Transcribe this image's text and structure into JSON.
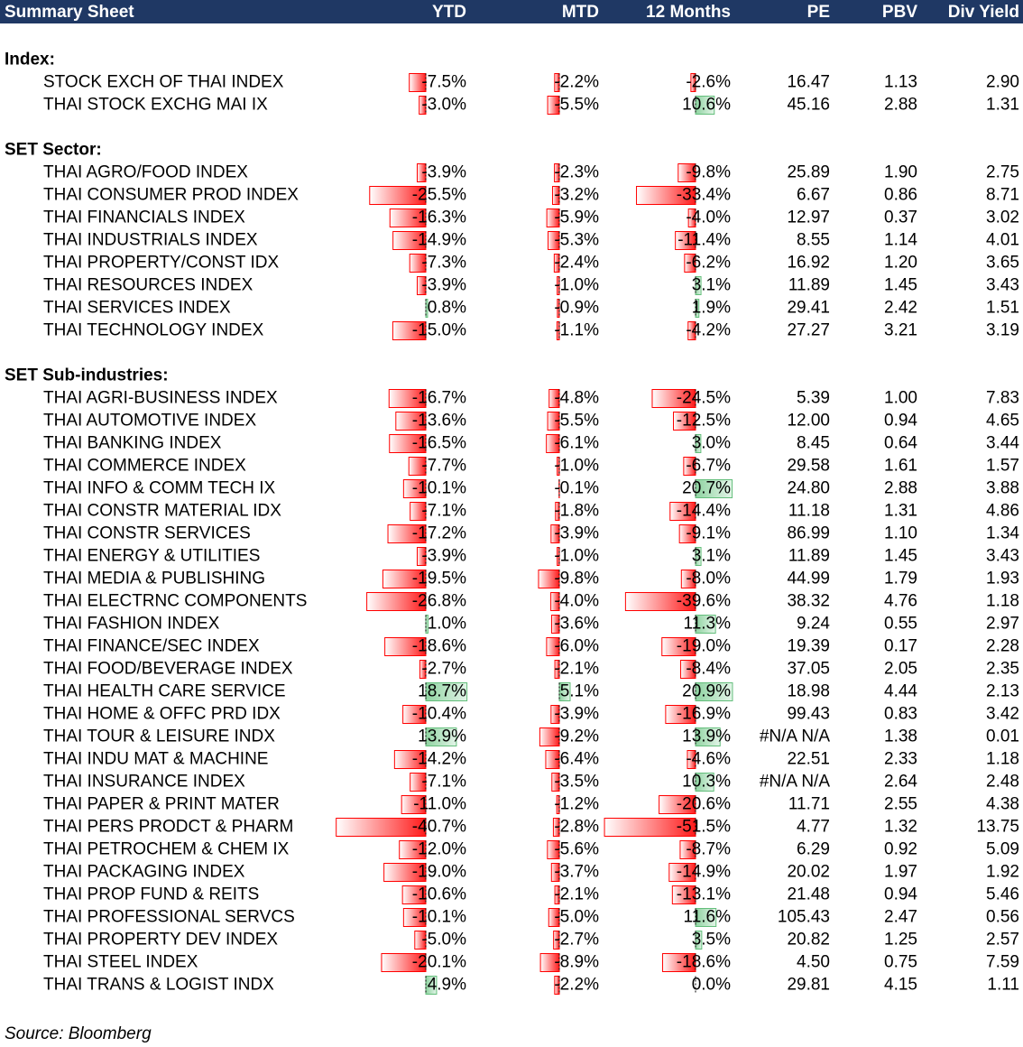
{
  "header": {
    "columns": [
      "Summary Sheet",
      "YTD",
      "MTD",
      "12 Months",
      "PE",
      "PBV",
      "Div Yield"
    ]
  },
  "sections": [
    {
      "title": "Index:",
      "rows": [
        [
          "STOCK EXCH OF THAI INDEX",
          {
            "value": -7.5,
            "label": "-7.5%"
          },
          {
            "value": -2.2,
            "label": "-2.2%"
          },
          {
            "value": -2.6,
            "label": "-2.6%"
          },
          "16.47",
          "1.13",
          "2.90"
        ],
        [
          "THAI STOCK EXCHG MAI IX",
          {
            "value": -3.0,
            "label": "-3.0%"
          },
          {
            "value": -5.5,
            "label": "-5.5%"
          },
          {
            "value": 10.6,
            "label": "10.6%"
          },
          "45.16",
          "2.88",
          "1.31"
        ]
      ]
    },
    {
      "title": "SET Sector:",
      "rows": [
        [
          "THAI AGRO/FOOD INDEX",
          {
            "value": -3.9,
            "label": "-3.9%"
          },
          {
            "value": -2.3,
            "label": "-2.3%"
          },
          {
            "value": -9.8,
            "label": "-9.8%"
          },
          "25.89",
          "1.90",
          "2.75"
        ],
        [
          "THAI CONSUMER PROD INDEX",
          {
            "value": -25.5,
            "label": "-25.5%"
          },
          {
            "value": -3.2,
            "label": "-3.2%"
          },
          {
            "value": -33.4,
            "label": "-33.4%"
          },
          "6.67",
          "0.86",
          "8.71"
        ],
        [
          "THAI FINANCIALS INDEX",
          {
            "value": -16.3,
            "label": "-16.3%"
          },
          {
            "value": -5.9,
            "label": "-5.9%"
          },
          {
            "value": -4.0,
            "label": "-4.0%"
          },
          "12.97",
          "0.37",
          "3.02"
        ],
        [
          "THAI INDUSTRIALS INDEX",
          {
            "value": -14.9,
            "label": "-14.9%"
          },
          {
            "value": -5.3,
            "label": "-5.3%"
          },
          {
            "value": -11.4,
            "label": "-11.4%"
          },
          "8.55",
          "1.14",
          "4.01"
        ],
        [
          "THAI PROPERTY/CONST IDX",
          {
            "value": -7.3,
            "label": "-7.3%"
          },
          {
            "value": -2.4,
            "label": "-2.4%"
          },
          {
            "value": -6.2,
            "label": "-6.2%"
          },
          "16.92",
          "1.20",
          "3.65"
        ],
        [
          "THAI RESOURCES INDEX",
          {
            "value": -3.9,
            "label": "-3.9%"
          },
          {
            "value": -1.0,
            "label": "-1.0%"
          },
          {
            "value": 3.1,
            "label": "3.1%"
          },
          "11.89",
          "1.45",
          "3.43"
        ],
        [
          "THAI SERVICES INDEX",
          {
            "value": 0.8,
            "label": "0.8%"
          },
          {
            "value": -0.9,
            "label": "-0.9%"
          },
          {
            "value": 1.9,
            "label": "1.9%"
          },
          "29.41",
          "2.42",
          "1.51"
        ],
        [
          "THAI TECHNOLOGY INDEX",
          {
            "value": -15.0,
            "label": "-15.0%"
          },
          {
            "value": -1.1,
            "label": "-1.1%"
          },
          {
            "value": -4.2,
            "label": "-4.2%"
          },
          "27.27",
          "3.21",
          "3.19"
        ]
      ]
    },
    {
      "title": "SET Sub-industries:",
      "rows": [
        [
          "THAI AGRI-BUSINESS INDEX",
          {
            "value": -16.7,
            "label": "-16.7%"
          },
          {
            "value": -4.8,
            "label": "-4.8%"
          },
          {
            "value": -24.5,
            "label": "-24.5%"
          },
          "5.39",
          "1.00",
          "7.83"
        ],
        [
          "THAI AUTOMOTIVE INDEX",
          {
            "value": -13.6,
            "label": "-13.6%"
          },
          {
            "value": -5.5,
            "label": "-5.5%"
          },
          {
            "value": -12.5,
            "label": "-12.5%"
          },
          "12.00",
          "0.94",
          "4.65"
        ],
        [
          "THAI BANKING INDEX",
          {
            "value": -16.5,
            "label": "-16.5%"
          },
          {
            "value": -6.1,
            "label": "-6.1%"
          },
          {
            "value": 3.0,
            "label": "3.0%"
          },
          "8.45",
          "0.64",
          "3.44"
        ],
        [
          "THAI COMMERCE INDEX",
          {
            "value": -7.7,
            "label": "-7.7%"
          },
          {
            "value": -1.0,
            "label": "-1.0%"
          },
          {
            "value": -6.7,
            "label": "-6.7%"
          },
          "29.58",
          "1.61",
          "1.57"
        ],
        [
          "THAI INFO & COMM TECH IX",
          {
            "value": -10.1,
            "label": "-10.1%"
          },
          {
            "value": -0.1,
            "label": "-0.1%"
          },
          {
            "value": 20.7,
            "label": "20.7%"
          },
          "24.80",
          "2.88",
          "3.88"
        ],
        [
          "THAI CONSTR MATERIAL IDX",
          {
            "value": -7.1,
            "label": "-7.1%"
          },
          {
            "value": -1.8,
            "label": "-1.8%"
          },
          {
            "value": -14.4,
            "label": "-14.4%"
          },
          "11.18",
          "1.31",
          "4.86"
        ],
        [
          "THAI CONSTR SERVICES",
          {
            "value": -17.2,
            "label": "-17.2%"
          },
          {
            "value": -3.9,
            "label": "-3.9%"
          },
          {
            "value": -9.1,
            "label": "-9.1%"
          },
          "86.99",
          "1.10",
          "1.34"
        ],
        [
          "THAI ENERGY & UTILITIES",
          {
            "value": -3.9,
            "label": "-3.9%"
          },
          {
            "value": -1.0,
            "label": "-1.0%"
          },
          {
            "value": 3.1,
            "label": "3.1%"
          },
          "11.89",
          "1.45",
          "3.43"
        ],
        [
          "THAI MEDIA & PUBLISHING",
          {
            "value": -19.5,
            "label": "-19.5%"
          },
          {
            "value": -9.8,
            "label": "-9.8%"
          },
          {
            "value": -8.0,
            "label": "-8.0%"
          },
          "44.99",
          "1.79",
          "1.93"
        ],
        [
          "THAI ELECTRNC COMPONENTS",
          {
            "value": -26.8,
            "label": "-26.8%"
          },
          {
            "value": -4.0,
            "label": "-4.0%"
          },
          {
            "value": -39.6,
            "label": "-39.6%"
          },
          "38.32",
          "4.76",
          "1.18"
        ],
        [
          "THAI FASHION INDEX",
          {
            "value": 1.0,
            "label": "1.0%"
          },
          {
            "value": -3.6,
            "label": "-3.6%"
          },
          {
            "value": 11.3,
            "label": "11.3%"
          },
          "9.24",
          "0.55",
          "2.97"
        ],
        [
          "THAI FINANCE/SEC INDEX",
          {
            "value": -18.6,
            "label": "-18.6%"
          },
          {
            "value": -6.0,
            "label": "-6.0%"
          },
          {
            "value": -19.0,
            "label": "-19.0%"
          },
          "19.39",
          "0.17",
          "2.28"
        ],
        [
          "THAI FOOD/BEVERAGE INDEX",
          {
            "value": -2.7,
            "label": "-2.7%"
          },
          {
            "value": -2.1,
            "label": "-2.1%"
          },
          {
            "value": -8.4,
            "label": "-8.4%"
          },
          "37.05",
          "2.05",
          "2.35"
        ],
        [
          "THAI HEALTH CARE SERVICE",
          {
            "value": 18.7,
            "label": "18.7%"
          },
          {
            "value": 5.1,
            "label": "5.1%"
          },
          {
            "value": 20.9,
            "label": "20.9%"
          },
          "18.98",
          "4.44",
          "2.13"
        ],
        [
          "THAI HOME & OFFC PRD IDX",
          {
            "value": -10.4,
            "label": "-10.4%"
          },
          {
            "value": -3.9,
            "label": "-3.9%"
          },
          {
            "value": -16.9,
            "label": "-16.9%"
          },
          "99.43",
          "0.83",
          "3.42"
        ],
        [
          "THAI TOUR & LEISURE INDX",
          {
            "value": 13.9,
            "label": "13.9%"
          },
          {
            "value": -9.2,
            "label": "-9.2%"
          },
          {
            "value": 13.9,
            "label": "13.9%"
          },
          "#N/A N/A",
          "1.38",
          "0.01"
        ],
        [
          "THAI INDU MAT & MACHINE",
          {
            "value": -14.2,
            "label": "-14.2%"
          },
          {
            "value": -6.4,
            "label": "-6.4%"
          },
          {
            "value": -4.6,
            "label": "-4.6%"
          },
          "22.51",
          "2.33",
          "1.18"
        ],
        [
          "THAI INSURANCE INDEX",
          {
            "value": -7.1,
            "label": "-7.1%"
          },
          {
            "value": -3.5,
            "label": "-3.5%"
          },
          {
            "value": 10.3,
            "label": "10.3%"
          },
          "#N/A N/A",
          "2.64",
          "2.48"
        ],
        [
          "THAI PAPER & PRINT MATER",
          {
            "value": -11.0,
            "label": "-11.0%"
          },
          {
            "value": -1.2,
            "label": "-1.2%"
          },
          {
            "value": -20.6,
            "label": "-20.6%"
          },
          "11.71",
          "2.55",
          "4.38"
        ],
        [
          "THAI PERS PRODCT & PHARM",
          {
            "value": -40.7,
            "label": "-40.7%"
          },
          {
            "value": -2.8,
            "label": "-2.8%"
          },
          {
            "value": -51.5,
            "label": "-51.5%"
          },
          "4.77",
          "1.32",
          "13.75"
        ],
        [
          "THAI PETROCHEM & CHEM IX",
          {
            "value": -12.0,
            "label": "-12.0%"
          },
          {
            "value": -5.6,
            "label": "-5.6%"
          },
          {
            "value": -8.7,
            "label": "-8.7%"
          },
          "6.29",
          "0.92",
          "5.09"
        ],
        [
          "THAI PACKAGING INDEX",
          {
            "value": -19.0,
            "label": "-19.0%"
          },
          {
            "value": -3.7,
            "label": "-3.7%"
          },
          {
            "value": -14.9,
            "label": "-14.9%"
          },
          "20.02",
          "1.97",
          "1.92"
        ],
        [
          "THAI PROP FUND & REITS",
          {
            "value": -10.6,
            "label": "-10.6%"
          },
          {
            "value": -2.1,
            "label": "-2.1%"
          },
          {
            "value": -13.1,
            "label": "-13.1%"
          },
          "21.48",
          "0.94",
          "5.46"
        ],
        [
          "THAI PROFESSIONAL SERVCS",
          {
            "value": -10.1,
            "label": "-10.1%"
          },
          {
            "value": -5.0,
            "label": "-5.0%"
          },
          {
            "value": 11.6,
            "label": "11.6%"
          },
          "105.43",
          "2.47",
          "0.56"
        ],
        [
          "THAI PROPERTY DEV INDEX",
          {
            "value": -5.0,
            "label": "-5.0%"
          },
          {
            "value": -2.7,
            "label": "-2.7%"
          },
          {
            "value": 3.5,
            "label": "3.5%"
          },
          "20.82",
          "1.25",
          "2.57"
        ],
        [
          "THAI STEEL INDEX",
          {
            "value": -20.1,
            "label": "-20.1%"
          },
          {
            "value": -8.9,
            "label": "-8.9%"
          },
          {
            "value": -18.6,
            "label": "-18.6%"
          },
          "4.50",
          "0.75",
          "7.59"
        ],
        [
          "THAI TRANS & LOGIST INDX",
          {
            "value": 4.9,
            "label": "4.9%"
          },
          {
            "value": -2.2,
            "label": "-2.2%"
          },
          {
            "value": 0.0,
            "label": "0.0%"
          },
          "29.81",
          "4.15",
          "1.11"
        ]
      ]
    }
  ],
  "source": "Source: Bloomberg"
}
